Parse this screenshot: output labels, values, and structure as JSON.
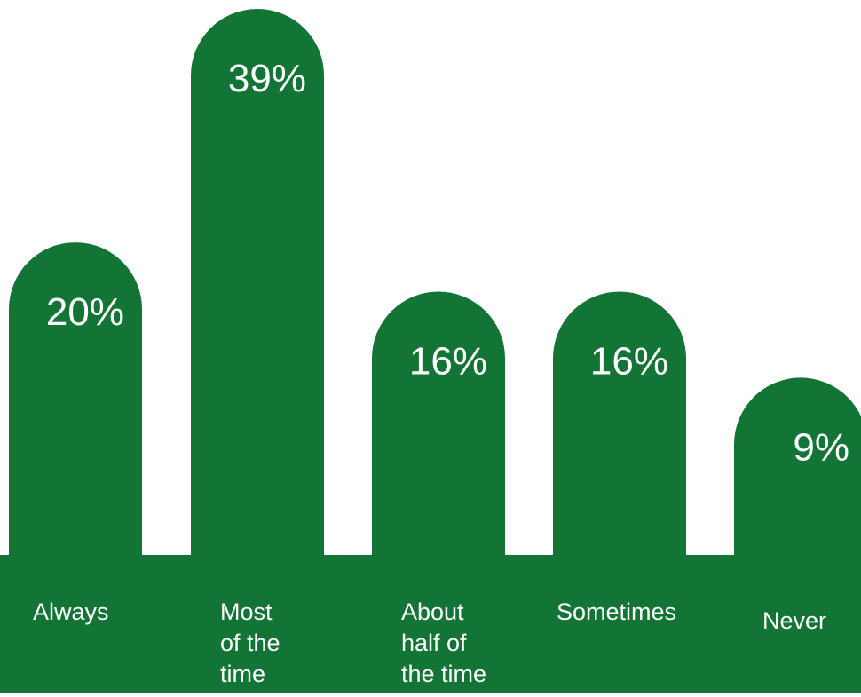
{
  "chart_data": {
    "type": "bar",
    "categories": [
      [
        "Always"
      ],
      [
        "Most",
        "of the",
        "time"
      ],
      [
        "About",
        "half of",
        "the time"
      ],
      [
        "Sometimes"
      ],
      [
        "Never"
      ]
    ],
    "values": [
      20,
      39,
      16,
      16,
      9
    ],
    "value_labels": [
      "20%",
      "39%",
      "16%",
      "16%",
      "9%"
    ],
    "unit": "%",
    "title": "",
    "xlabel": "",
    "ylabel": "",
    "ylim": [
      0,
      39
    ],
    "grid": false,
    "legend": "none",
    "colors": {
      "bar": "#127536",
      "text": "#ffffff",
      "background": "#ffffff"
    }
  }
}
